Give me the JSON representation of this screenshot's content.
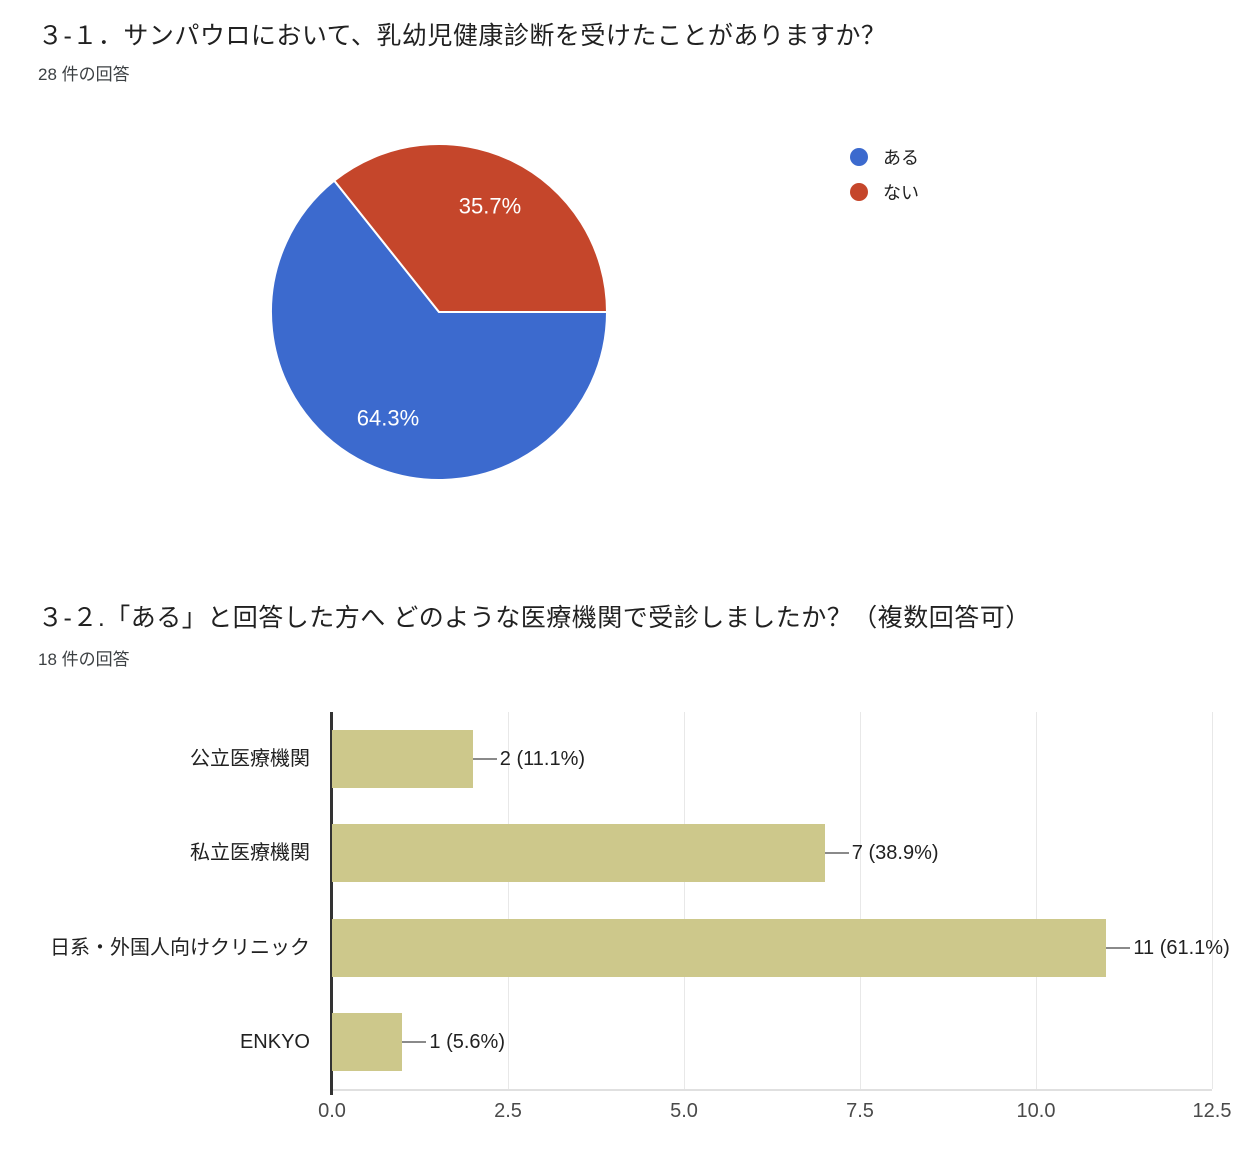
{
  "questions": [
    {
      "title": "３-１．サンパウロにおいて、乳幼児健康診断を受けたことがありますか？",
      "responses_label": "28 件の回答"
    },
    {
      "title": "３-２.「ある」と回答した方へ どのような医療機関で受診しましたか？（複数回答可）",
      "responses_label": "18 件の回答"
    }
  ],
  "chart_data": [
    {
      "type": "pie",
      "title": "３-１．サンパウロにおいて、乳幼児健康診断を受けたことがありますか？",
      "subtitle": "28 件の回答",
      "labels": [
        "ある",
        "ない"
      ],
      "values": [
        18,
        10
      ],
      "percent_labels": [
        "64.3%",
        "35.7%"
      ],
      "colors": [
        "#3c6ace",
        "#c5462b"
      ],
      "start_angle": "east",
      "direction": "clockwise",
      "legend_position": "right",
      "slice_border_color": "#ffffff"
    },
    {
      "type": "bar",
      "orientation": "horizontal",
      "title": "３-２.「ある」と回答した方へ どのような医療機関で受診しましたか？（複数回答可）",
      "subtitle": "18 件の回答",
      "categories": [
        "公立医療機関",
        "私立医療機関",
        "日系・外国人向けクリニック",
        "ENKYO"
      ],
      "values": [
        2,
        7,
        11,
        1
      ],
      "value_labels": [
        "2 (11.1%)",
        "7 (38.9%)",
        "11 (61.1%)",
        "1 (5.6%)"
      ],
      "bar_color": "#cdc88b",
      "xlim": [
        0,
        12.5
      ],
      "x_ticks": [
        0,
        2.5,
        5,
        7.5,
        10,
        12.5
      ],
      "x_tick_labels": [
        "0.0",
        "2.5",
        "5.0",
        "7.5",
        "10.0",
        "12.5"
      ],
      "grid": true,
      "legend_position": "none"
    }
  ],
  "colors": {
    "title_text": "#212121",
    "responses_text": "#3c4043",
    "axis_line": "#333333",
    "grid_line": "#e8e8e8",
    "baseline": "#e0e0e0",
    "tick_text": "#4a4a4a",
    "category_text": "#212121",
    "value_text": "#212121",
    "leader_line": "#8a8a8a",
    "pie_label_text": "#ffffff"
  }
}
